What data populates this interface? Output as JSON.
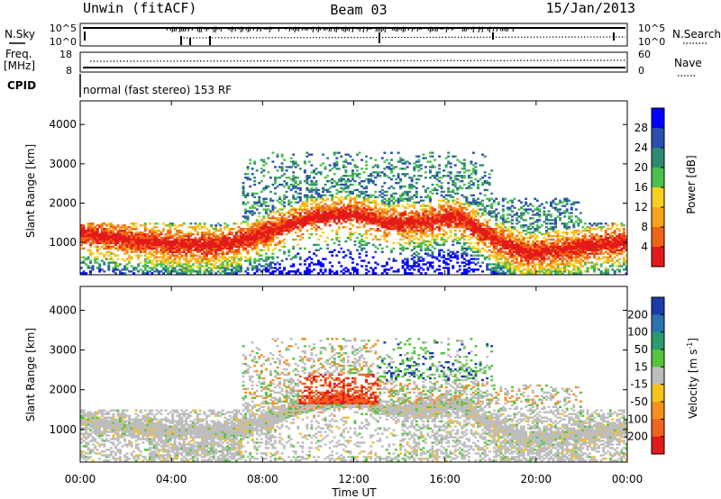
{
  "header": {
    "station": "Unwin (fitACF)",
    "beam": "Beam 03",
    "date": "15/Jan/2013"
  },
  "noise_panel": {
    "left_label": "N.Sky",
    "right_label": "N.Search",
    "left_ticks": [
      "10^5",
      "10^0"
    ],
    "right_ticks": [
      "10^5",
      "10^0"
    ]
  },
  "freq_panel": {
    "left_label_1": "Freq.",
    "left_label_2": "[MHz]",
    "right_label": "Nave",
    "left_ticks": [
      "18",
      "8"
    ],
    "right_ticks": [
      "60",
      "0"
    ]
  },
  "cpid": {
    "label": "CPID",
    "text": "normal (fast stereo) 153 RF"
  },
  "chart_data": [
    {
      "type": "heatmap",
      "name": "power",
      "ylabel": "Slant Range [km]",
      "yticks": [
        1000,
        2000,
        3000,
        4000
      ],
      "ylim": [
        180,
        4600
      ],
      "colorbar": {
        "label": "Power [dB]",
        "ticks": [
          4,
          8,
          12,
          16,
          20,
          24,
          28
        ],
        "range": [
          0,
          32
        ],
        "colors": [
          "#0000ff",
          "#2b4fb0",
          "#2f8a73",
          "#4bc04b",
          "#f5d020",
          "#f5a51d",
          "#f06418",
          "#e41a1a"
        ]
      }
    },
    {
      "type": "heatmap",
      "name": "velocity",
      "ylabel": "Slant Range [km]",
      "yticks": [
        1000,
        2000,
        3000,
        4000
      ],
      "ylim": [
        180,
        4600
      ],
      "xlabel": "Time UT",
      "xticks": [
        "00:00",
        "04:00",
        "08:00",
        "12:00",
        "16:00",
        "20:00",
        "00:00"
      ],
      "colorbar": {
        "label": "Velocity [m s",
        "label_sup": "-1",
        "label_end": "]",
        "ticks": [
          200,
          100,
          50,
          15,
          -15,
          -50,
          -100,
          -200
        ],
        "colors": [
          "#1b3ca8",
          "#2c72b0",
          "#2a9b6b",
          "#53c43c",
          "#bdbdbd",
          "#f6c21c",
          "#f59020",
          "#ef6420",
          "#e11a1a"
        ]
      }
    }
  ]
}
